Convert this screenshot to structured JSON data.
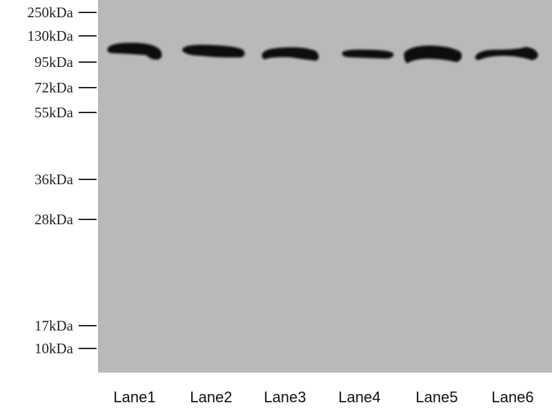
{
  "markers": [
    {
      "label": "250kDa",
      "kda": 250
    },
    {
      "label": "130kDa",
      "kda": 130
    },
    {
      "label": "95kDa",
      "kda": 95
    },
    {
      "label": "72kDa",
      "kda": 72
    },
    {
      "label": "55kDa",
      "kda": 55
    },
    {
      "label": "36kDa",
      "kda": 36
    },
    {
      "label": "28kDa",
      "kda": 28
    },
    {
      "label": "17kDa",
      "kda": 17
    },
    {
      "label": "10kDa",
      "kda": 10
    }
  ],
  "lanes": [
    {
      "label": "Lane1"
    },
    {
      "label": "Lane2"
    },
    {
      "label": "Lane3"
    },
    {
      "label": "Lane4"
    },
    {
      "label": "Lane5"
    },
    {
      "label": "Lane6"
    }
  ],
  "colors": {
    "membrane": "#b9b9b9",
    "band": "#0c0c0c"
  }
}
